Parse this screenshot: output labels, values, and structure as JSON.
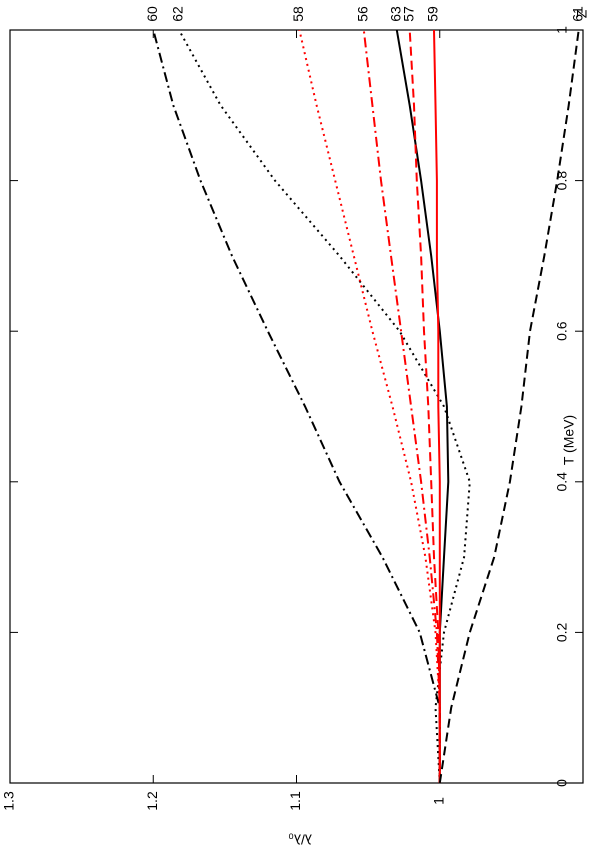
{
  "chart_data": {
    "type": "line",
    "x_label": "T (MeV)",
    "y_label": "λ/λ₀",
    "legend_title": "Z",
    "x": [
      0,
      0.1,
      0.2,
      0.3,
      0.4,
      0.5,
      0.6,
      0.7,
      0.8,
      0.9,
      1
    ],
    "xlim": [
      0,
      1
    ],
    "xticks": [
      0,
      0.2,
      0.4,
      0.6,
      0.8,
      1
    ],
    "ylim": [
      0.9,
      1.3
    ],
    "yticks": [
      1,
      1.1,
      1.2,
      1.3
    ],
    "series": [
      {
        "name": "60",
        "color": "#000000",
        "style": "dashdot",
        "values": [
          1,
          1.0,
          1.014,
          1.04,
          1.07,
          1.094,
          1.12,
          1.145,
          1.167,
          1.186,
          1.2
        ]
      },
      {
        "name": "62",
        "color": "#000000",
        "style": "dotted",
        "values": [
          1,
          1.003,
          0.997,
          0.983,
          0.979,
          0.997,
          1.028,
          1.07,
          1.115,
          1.153,
          1.182
        ]
      },
      {
        "name": "58",
        "color": "#ff0000",
        "style": "dotted",
        "values": [
          1,
          1.0,
          1.003,
          1.01,
          1.02,
          1.033,
          1.047,
          1.06,
          1.073,
          1.086,
          1.098
        ]
      },
      {
        "name": "56",
        "color": "#ff0000",
        "style": "dashdot",
        "values": [
          1,
          1.0,
          1.002,
          1.007,
          1.013,
          1.02,
          1.027,
          1.034,
          1.041,
          1.047,
          1.053
        ]
      },
      {
        "name": "63",
        "color": "#000000",
        "style": "solid",
        "values": [
          1,
          1.0,
          1.0,
          0.997,
          0.994,
          0.995,
          1.0,
          1.006,
          1.013,
          1.021,
          1.03
        ]
      },
      {
        "name": "57",
        "color": "#ff0000",
        "style": "dashed",
        "values": [
          1,
          1.0,
          1.001,
          1.004,
          1.006,
          1.008,
          1.011,
          1.013,
          1.016,
          1.018,
          1.021
        ]
      },
      {
        "name": "59",
        "color": "#ff0000",
        "style": "solid",
        "values": [
          1,
          1.0,
          1.0,
          1.0,
          1.0,
          1.001,
          1.001,
          1.002,
          1.002,
          1.003,
          1.004
        ]
      },
      {
        "name": "61",
        "color": "#000000",
        "style": "dashed",
        "values": [
          1,
          0.992,
          0.979,
          0.962,
          0.951,
          0.943,
          0.937,
          0.927,
          0.918,
          0.91,
          0.903
        ]
      }
    ]
  }
}
